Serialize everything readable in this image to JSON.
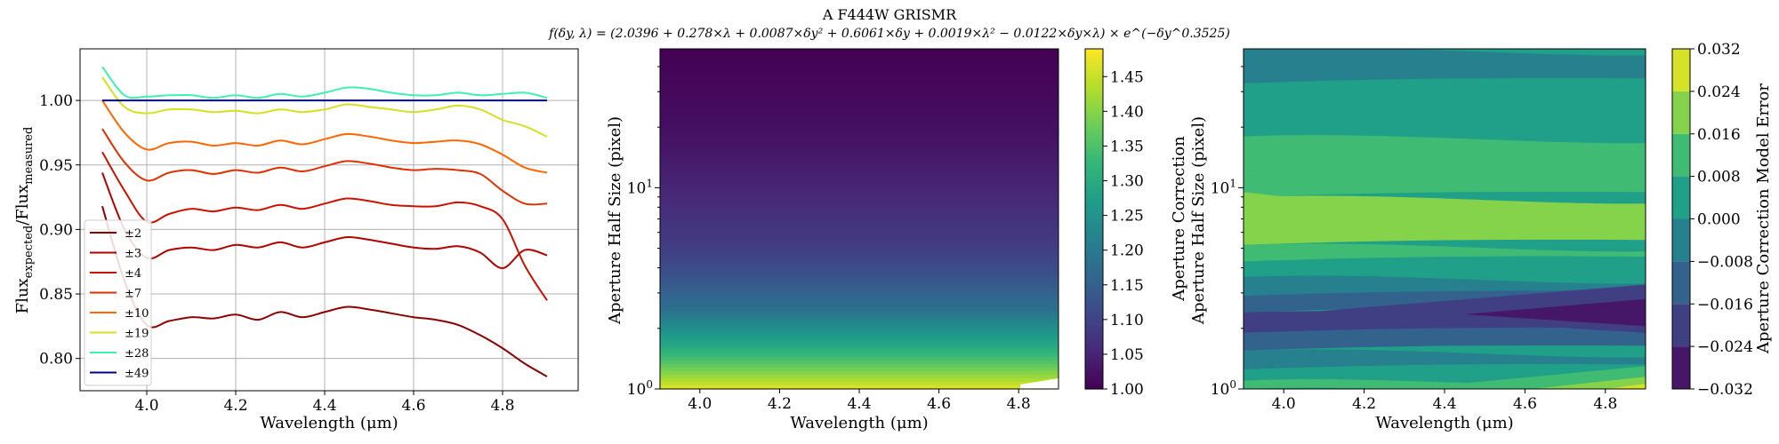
{
  "figure": {
    "title": "A F444W GRISMR",
    "formula": "f(δy, λ) = (2.0396 + 0.278×λ + 0.0087×δy² + 0.6061×δy + 0.0019×λ² − 0.0122×δy×λ) × e^(−δy^0.3525)"
  },
  "colors": {
    "grid": "#b0b0b0",
    "viridis": [
      "#440154",
      "#482878",
      "#3e4989",
      "#31688e",
      "#26828e",
      "#1f9e89",
      "#35b779",
      "#6ece58",
      "#b5de2b",
      "#fde725"
    ]
  },
  "chart_data": [
    {
      "type": "line",
      "title": "",
      "xlabel": "Wavelength (μm)",
      "ylabel": "Flux_expected / Flux_measured",
      "xlim": [
        3.85,
        4.97
      ],
      "ylim": [
        0.775,
        1.04
      ],
      "grid": true,
      "legend_position": "bottom-left",
      "x_ticks": [
        4.0,
        4.2,
        4.4,
        4.6,
        4.8
      ],
      "x_tick_labels": [
        "4.0",
        "4.2",
        "4.4",
        "4.6",
        "4.8"
      ],
      "y_ticks": [
        0.8,
        0.85,
        0.9,
        0.95,
        1.0
      ],
      "y_tick_labels": [
        "0.80",
        "0.85",
        "0.90",
        "0.95",
        "1.00"
      ],
      "x": [
        3.9,
        3.95,
        4.0,
        4.05,
        4.1,
        4.15,
        4.2,
        4.25,
        4.3,
        4.35,
        4.4,
        4.45,
        4.5,
        4.55,
        4.6,
        4.65,
        4.7,
        4.75,
        4.8,
        4.85,
        4.9
      ],
      "series": [
        {
          "name": "±2",
          "color": "#8b0000",
          "values": [
            0.918,
            0.86,
            0.826,
            0.829,
            0.832,
            0.831,
            0.834,
            0.83,
            0.836,
            0.832,
            0.836,
            0.84,
            0.838,
            0.835,
            0.832,
            0.83,
            0.826,
            0.818,
            0.808,
            0.796,
            0.786
          ]
        },
        {
          "name": "±3",
          "color": "#b00000",
          "values": [
            0.944,
            0.9,
            0.878,
            0.884,
            0.886,
            0.884,
            0.888,
            0.886,
            0.89,
            0.886,
            0.89,
            0.894,
            0.892,
            0.889,
            0.886,
            0.885,
            0.887,
            0.882,
            0.87,
            0.884,
            0.88
          ]
        },
        {
          "name": "±4",
          "color": "#cc1100",
          "values": [
            0.96,
            0.93,
            0.906,
            0.912,
            0.916,
            0.914,
            0.917,
            0.915,
            0.919,
            0.916,
            0.92,
            0.924,
            0.922,
            0.919,
            0.918,
            0.918,
            0.921,
            0.918,
            0.908,
            0.872,
            0.845
          ]
        },
        {
          "name": "±7",
          "color": "#e03000",
          "values": [
            0.978,
            0.952,
            0.938,
            0.944,
            0.946,
            0.943,
            0.946,
            0.944,
            0.948,
            0.945,
            0.949,
            0.953,
            0.951,
            0.948,
            0.946,
            0.947,
            0.946,
            0.943,
            0.93,
            0.92,
            0.92
          ]
        },
        {
          "name": "±10",
          "color": "#ff6600",
          "values": [
            1.0,
            0.975,
            0.962,
            0.967,
            0.968,
            0.965,
            0.967,
            0.965,
            0.969,
            0.966,
            0.97,
            0.974,
            0.972,
            0.969,
            0.967,
            0.968,
            0.969,
            0.966,
            0.958,
            0.948,
            0.944
          ]
        },
        {
          "name": "±19",
          "color": "#d4e020",
          "values": [
            1.018,
            0.995,
            0.99,
            0.993,
            0.993,
            0.991,
            0.992,
            0.99,
            0.993,
            0.991,
            0.993,
            0.997,
            0.995,
            0.993,
            0.991,
            0.993,
            0.996,
            0.993,
            0.985,
            0.98,
            0.972
          ]
        },
        {
          "name": "±28",
          "color": "#40f0b0",
          "values": [
            1.026,
            1.004,
            1.003,
            1.004,
            1.004,
            1.002,
            1.004,
            1.002,
            1.005,
            1.003,
            1.006,
            1.01,
            1.009,
            1.006,
            1.004,
            1.004,
            1.006,
            1.004,
            1.005,
            1.006,
            1.002
          ]
        },
        {
          "name": "±49",
          "color": "#000080",
          "values": [
            1.0,
            1.0,
            1.0,
            1.0,
            1.0,
            1.0,
            1.0,
            1.0,
            1.0,
            1.0,
            1.0,
            1.0,
            1.0,
            1.0,
            1.0,
            1.0,
            1.0,
            1.0,
            1.0,
            1.0,
            1.0
          ]
        }
      ]
    },
    {
      "type": "heatmap",
      "title": "",
      "xlabel": "Wavelength (μm)",
      "ylabel": "Aperture Half Size (pixel)",
      "xlim": [
        3.9,
        4.9
      ],
      "ylim": [
        1,
        49
      ],
      "y_scale": "log",
      "x_ticks": [
        4.0,
        4.2,
        4.4,
        4.6,
        4.8
      ],
      "x_tick_labels": [
        "4.0",
        "4.2",
        "4.4",
        "4.6",
        "4.8"
      ],
      "y_major_ticks": [
        1,
        10
      ],
      "y_tick_labels": [
        "10^0",
        "10^1"
      ],
      "colorbar": {
        "label": "Aperture Correction",
        "range": [
          1.0,
          1.49
        ],
        "ticks": [
          1.0,
          1.05,
          1.1,
          1.15,
          1.2,
          1.25,
          1.3,
          1.35,
          1.4,
          1.45
        ],
        "tick_labels": [
          "1.00",
          "1.05",
          "1.10",
          "1.15",
          "1.20",
          "1.25",
          "1.30",
          "1.35",
          "1.40",
          "1.45"
        ]
      },
      "sample_y": [
        1.0,
        1.1,
        1.3,
        1.6,
        2.0,
        2.5,
        3.5,
        5.0,
        10.0,
        20.0,
        49.0
      ],
      "sample_values": [
        1.47,
        1.43,
        1.37,
        1.3,
        1.24,
        1.18,
        1.13,
        1.09,
        1.05,
        1.02,
        1.0
      ]
    },
    {
      "type": "heatmap",
      "title": "",
      "xlabel": "Wavelength (μm)",
      "ylabel": "Aperture Half Size (pixel)",
      "xlim": [
        3.9,
        4.9
      ],
      "ylim": [
        1,
        49
      ],
      "y_scale": "log",
      "x_ticks": [
        4.0,
        4.2,
        4.4,
        4.6,
        4.8
      ],
      "x_tick_labels": [
        "4.0",
        "4.2",
        "4.4",
        "4.6",
        "4.8"
      ],
      "y_major_ticks": [
        1,
        10
      ],
      "y_tick_labels": [
        "10^0",
        "10^1"
      ],
      "colorbar": {
        "label": "Aperture Correction Model Error",
        "range": [
          -0.032,
          0.032
        ],
        "ticks": [
          -0.032,
          -0.024,
          -0.016,
          -0.008,
          0.0,
          0.008,
          0.016,
          0.024,
          0.032
        ],
        "tick_labels": [
          "−0.032",
          "−0.024",
          "−0.016",
          "−0.008",
          "0.000",
          "0.008",
          "0.016",
          "0.024",
          "0.032"
        ]
      },
      "bands": [
        {
          "y": 49,
          "level": -0.004
        },
        {
          "y": 40,
          "level": -0.004
        },
        {
          "y": 33,
          "level": 0.004
        },
        {
          "y": 22,
          "level": 0.004
        },
        {
          "y": 18,
          "level": 0.012
        },
        {
          "y": 11.5,
          "level": 0.012
        },
        {
          "y": 9,
          "level": 0.02
        },
        {
          "y": 6,
          "level": 0.02
        },
        {
          "y": 5.2,
          "level": 0.012
        },
        {
          "y": 4.3,
          "level": 0.004
        },
        {
          "y": 3.6,
          "level": -0.004
        },
        {
          "y": 2.9,
          "level": -0.012
        },
        {
          "y": 2.4,
          "level": -0.02
        },
        {
          "y": 1.9,
          "level": -0.012
        },
        {
          "y": 1.55,
          "level": -0.004
        },
        {
          "y": 1.25,
          "level": 0.004
        },
        {
          "y": 1.1,
          "level": 0.012
        },
        {
          "y": 1.0,
          "level": 0.02
        }
      ]
    }
  ]
}
